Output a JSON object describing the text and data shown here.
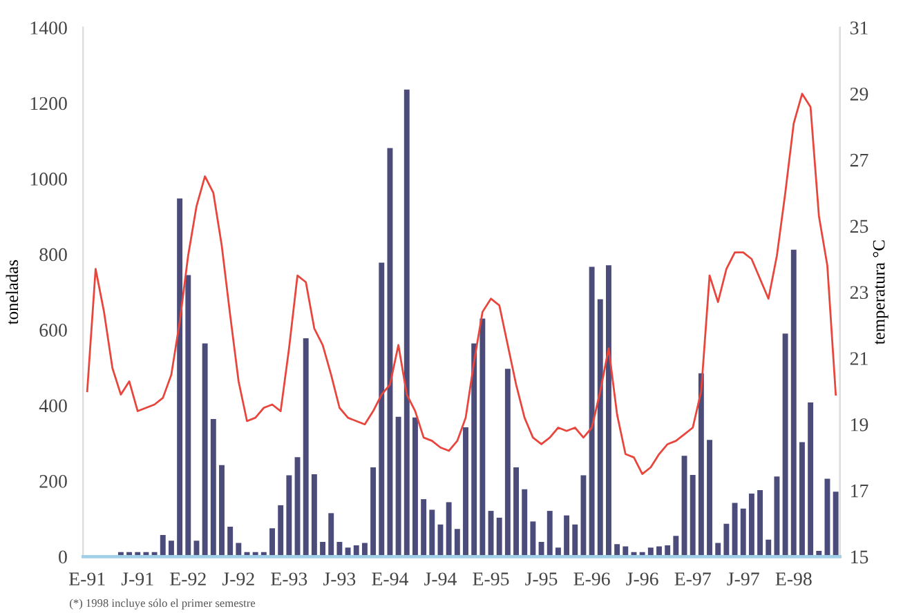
{
  "chart_data": {
    "type": "bar",
    "categories": [
      "E-91",
      null,
      null,
      null,
      null,
      null,
      "J-91",
      null,
      null,
      null,
      null,
      null,
      "E-92",
      null,
      null,
      null,
      null,
      null,
      "J-92",
      null,
      null,
      null,
      null,
      null,
      "E-93",
      null,
      null,
      null,
      null,
      null,
      "J-93",
      null,
      null,
      null,
      null,
      null,
      "E-94",
      null,
      null,
      null,
      null,
      null,
      "J-94",
      null,
      null,
      null,
      null,
      null,
      "E-95",
      null,
      null,
      null,
      null,
      null,
      "J-95",
      null,
      null,
      null,
      null,
      null,
      "E-96",
      null,
      null,
      null,
      null,
      null,
      "J-96",
      null,
      null,
      null,
      null,
      null,
      "E-97",
      null,
      null,
      null,
      null,
      null,
      "J-97",
      null,
      null,
      null,
      null,
      null,
      "E-98",
      null,
      null,
      null,
      null,
      null
    ],
    "series": [
      {
        "color": "#4b4c7a",
        "values": [
          null,
          null,
          null,
          null,
          12,
          12,
          12,
          12,
          12,
          57,
          42,
          948,
          745,
          42,
          564,
          364,
          242,
          79,
          36,
          12,
          12,
          12,
          75,
          136,
          215,
          263,
          578,
          218,
          39,
          115,
          39,
          24,
          30,
          36,
          236,
          778,
          1081,
          370,
          1236,
          368,
          152,
          124,
          85,
          144,
          73,
          342,
          564,
          630,
          121,
          103,
          497,
          236,
          178,
          93,
          39,
          121,
          24,
          109,
          85,
          215,
          767,
          681,
          771,
          33,
          27,
          12,
          12,
          24,
          27,
          30,
          55,
          267,
          216,
          485,
          309,
          36,
          87,
          142,
          127,
          167,
          176,
          45,
          212,
          590,
          812,
          303,
          408,
          15,
          206,
          172
        ]
      },
      {
        "type": "line",
        "axis": "y2",
        "color": "#e8453c",
        "values": [
          20.0,
          23.7,
          22.4,
          20.7,
          19.9,
          20.3,
          19.4,
          19.5,
          19.6,
          19.8,
          20.5,
          22.1,
          24.1,
          25.6,
          26.5,
          26.0,
          24.4,
          22.3,
          20.3,
          19.1,
          19.2,
          19.5,
          19.6,
          19.4,
          21.3,
          23.5,
          23.3,
          21.9,
          21.4,
          20.5,
          19.5,
          19.2,
          19.1,
          19.0,
          19.4,
          19.9,
          20.2,
          21.4,
          19.9,
          19.4,
          18.6,
          18.5,
          18.3,
          18.2,
          18.5,
          19.2,
          20.9,
          22.4,
          22.8,
          22.6,
          21.4,
          20.2,
          19.2,
          18.6,
          18.4,
          18.6,
          18.9,
          18.8,
          18.9,
          18.6,
          18.9,
          20.0,
          21.3,
          19.3,
          18.1,
          18.0,
          17.5,
          17.7,
          18.1,
          18.4,
          18.5,
          18.7,
          18.9,
          20.0,
          23.5,
          22.7,
          23.7,
          24.2,
          24.2,
          24.0,
          23.4,
          22.8,
          24.1,
          26.0,
          28.1,
          29.0,
          28.6,
          25.3,
          23.8,
          19.9
        ]
      }
    ],
    "ylabel": "toneladas",
    "y2label": "temperatura °C",
    "ylim": [
      0,
      1400
    ],
    "yticks": [
      0,
      200,
      400,
      600,
      800,
      1000,
      1200,
      1400
    ],
    "y2lim": [
      15,
      31
    ],
    "y2ticks": [
      15,
      17,
      19,
      21,
      23,
      25,
      27,
      29,
      31
    ],
    "grid": false,
    "legend": false,
    "annotations": [
      "(*) 1998 incluye sólo el primer semestre"
    ]
  }
}
